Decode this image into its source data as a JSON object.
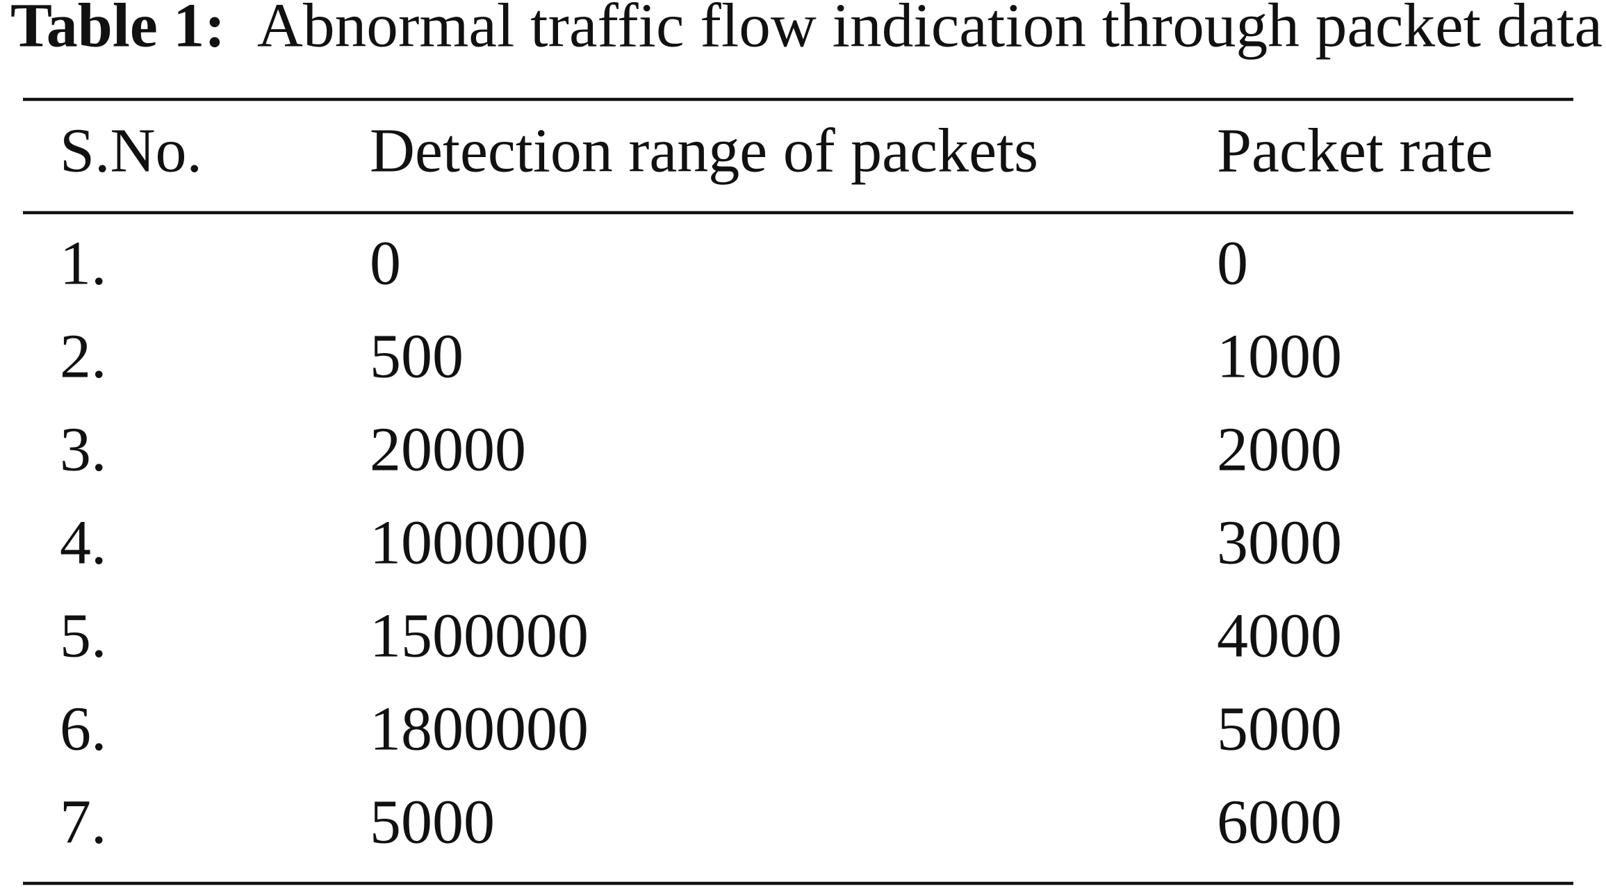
{
  "caption": {
    "label": "Table 1:",
    "text": "Abnormal traffic flow indication through packet data"
  },
  "table": {
    "header": [
      "S.No.",
      "Detection range of packets",
      "Packet rate"
    ],
    "rows": [
      [
        "1.",
        "0",
        "0"
      ],
      [
        "2.",
        "500",
        "1000"
      ],
      [
        "3.",
        "20000",
        "2000"
      ],
      [
        "4.",
        "1000000",
        "3000"
      ],
      [
        "5.",
        "1500000",
        "4000"
      ],
      [
        "6.",
        "1800000",
        "5000"
      ],
      [
        "7.",
        "5000",
        "6000"
      ]
    ]
  }
}
